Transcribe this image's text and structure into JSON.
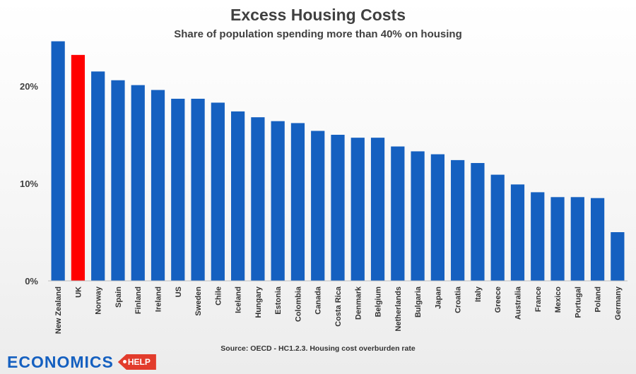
{
  "chart_data": {
    "type": "bar",
    "title": "Excess Housing Costs",
    "subtitle": "Share of population spending more than 40% on housing",
    "xlabel": "",
    "ylabel": "",
    "ylim": [
      0,
      25
    ],
    "yticks": [
      0,
      10,
      20
    ],
    "ytick_labels": [
      "0%",
      "10%",
      "20%"
    ],
    "grid": false,
    "categories": [
      "New Zealand",
      "UK",
      "Norway",
      "Spain",
      "Finland",
      "Ireland",
      "US",
      "Sweden",
      "Chile",
      "Iceland",
      "Hungary",
      "Estonia",
      "Colombia",
      "Canada",
      "Costa Rica",
      "Denmark",
      "Belgium",
      "Netherlands",
      "Bulgaria",
      "Japan",
      "Croatia",
      "Italy",
      "Greece",
      "Australia",
      "France",
      "Mexico",
      "Portugal",
      "Poland",
      "Germany"
    ],
    "values": [
      24.6,
      23.2,
      21.5,
      20.6,
      20.1,
      19.6,
      18.7,
      18.7,
      18.3,
      17.4,
      16.8,
      16.4,
      16.2,
      15.4,
      15.0,
      14.7,
      14.7,
      13.8,
      13.3,
      13.0,
      12.4,
      12.1,
      10.9,
      9.9,
      9.1,
      8.6,
      8.6,
      8.5,
      5.0
    ],
    "highlight_category": "UK",
    "colors": {
      "bar": "#1560c0",
      "highlight": "#ff0000"
    }
  },
  "source": "Source: OECD - HC1.2.3.  Housing cost overburden rate",
  "logo": {
    "word": "ECONOMICS",
    "badge": "HELP"
  }
}
